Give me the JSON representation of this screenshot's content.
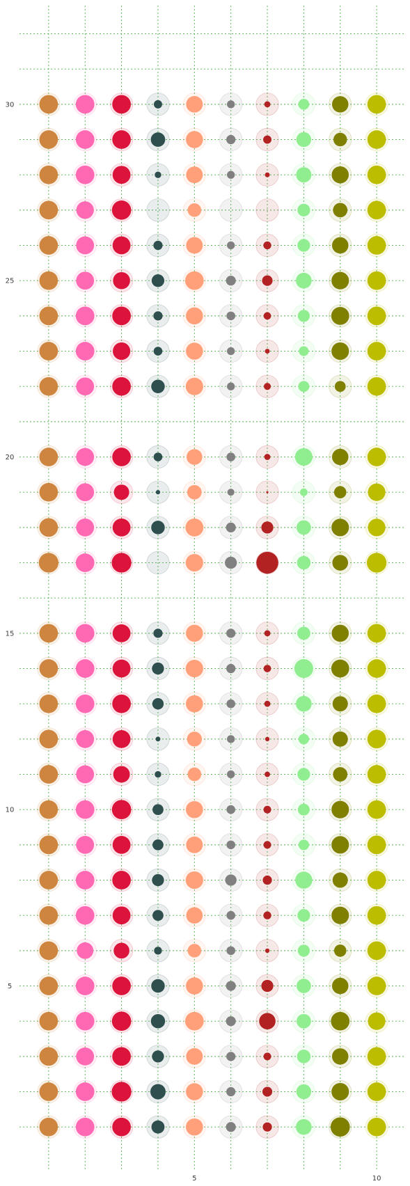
{
  "chart_data": {
    "type": "scatter",
    "title": "",
    "xlabel": "",
    "ylabel": "",
    "xlim": [
      0.2,
      10.8
    ],
    "ylim": [
      -0.2,
      32.8
    ],
    "grid": true,
    "x_ticks": [
      5,
      10
    ],
    "y_ticks": [
      5,
      10,
      15,
      20,
      25,
      30
    ],
    "x_grid": [
      1,
      2,
      3,
      4,
      5,
      6,
      7,
      8,
      9,
      10
    ],
    "y_grid": [
      1,
      2,
      3,
      4,
      5,
      6,
      7,
      8,
      9,
      10,
      11,
      12,
      13,
      14,
      15,
      16,
      17,
      18,
      19,
      20,
      21,
      22,
      23,
      24,
      25,
      26,
      27,
      28,
      29,
      30,
      31,
      32
    ],
    "colors": [
      "#cd853f",
      "#ff69b4",
      "#dc143c",
      "#2f4f4f",
      "#ffa07a",
      "#808080",
      "#b22222",
      "#90ee90",
      "#808000",
      "#bdbd00"
    ],
    "rows": [
      {
        "y": 1,
        "sizes": [
          0.85,
          0.85,
          0.85,
          0.6,
          0.78,
          0.45,
          0.42,
          0.72,
          0.88,
          0.85
        ]
      },
      {
        "y": 2,
        "sizes": [
          0.85,
          0.85,
          0.9,
          0.7,
          0.78,
          0.42,
          0.45,
          0.68,
          0.8,
          0.85
        ]
      },
      {
        "y": 3,
        "sizes": [
          0.85,
          0.82,
          0.85,
          0.55,
          0.76,
          0.42,
          0.35,
          0.62,
          0.75,
          0.85
        ]
      },
      {
        "y": 4,
        "sizes": [
          0.85,
          0.85,
          0.88,
          0.65,
          0.85,
          0.45,
          0.75,
          0.66,
          0.85,
          0.8
        ]
      },
      {
        "y": 5,
        "sizes": [
          0.85,
          0.85,
          0.85,
          0.62,
          0.78,
          0.45,
          0.55,
          0.66,
          0.75,
          0.85
        ]
      },
      {
        "y": 6,
        "sizes": [
          0.85,
          0.76,
          0.72,
          0.36,
          0.62,
          0.4,
          0.2,
          0.55,
          0.56,
          0.85
        ]
      },
      {
        "y": 7,
        "sizes": [
          0.85,
          0.85,
          0.82,
          0.5,
          0.75,
          0.4,
          0.36,
          0.58,
          0.8,
          0.85
        ]
      },
      {
        "y": 8,
        "sizes": [
          0.85,
          0.85,
          0.85,
          0.55,
          0.8,
          0.52,
          0.42,
          0.78,
          0.7,
          0.85
        ]
      },
      {
        "y": 9,
        "sizes": [
          0.85,
          0.82,
          0.82,
          0.5,
          0.76,
          0.4,
          0.35,
          0.48,
          0.8,
          0.85
        ]
      },
      {
        "y": 10,
        "sizes": [
          0.85,
          0.85,
          0.88,
          0.5,
          0.78,
          0.4,
          0.35,
          0.54,
          0.8,
          0.85
        ]
      },
      {
        "y": 11,
        "sizes": [
          0.85,
          0.82,
          0.76,
          0.3,
          0.62,
          0.36,
          0.25,
          0.58,
          0.66,
          0.85
        ]
      },
      {
        "y": 12,
        "sizes": [
          0.85,
          0.82,
          0.82,
          0.22,
          0.68,
          0.36,
          0.2,
          0.48,
          0.7,
          0.85
        ]
      },
      {
        "y": 13,
        "sizes": [
          0.85,
          0.85,
          0.85,
          0.52,
          0.78,
          0.4,
          0.28,
          0.72,
          0.7,
          0.85
        ]
      },
      {
        "y": 14,
        "sizes": [
          0.85,
          0.85,
          0.82,
          0.55,
          0.8,
          0.42,
          0.34,
          0.86,
          0.82,
          0.85
        ]
      },
      {
        "y": 15,
        "sizes": [
          0.85,
          0.85,
          0.82,
          0.42,
          0.78,
          0.42,
          0.28,
          0.6,
          0.78,
          0.85
        ]
      },
      {
        "y": 17,
        "sizes": [
          0.9,
          0.85,
          0.9,
          0.0,
          0.8,
          0.55,
          1.0,
          0.62,
          0.72,
          0.9
        ]
      },
      {
        "y": 18,
        "sizes": [
          0.85,
          0.82,
          0.82,
          0.62,
          0.82,
          0.45,
          0.55,
          0.66,
          0.8,
          0.8
        ]
      },
      {
        "y": 19,
        "sizes": [
          0.85,
          0.82,
          0.7,
          0.2,
          0.66,
          0.32,
          0.1,
          0.35,
          0.56,
          0.8
        ]
      },
      {
        "y": 20,
        "sizes": [
          0.85,
          0.82,
          0.85,
          0.4,
          0.72,
          0.4,
          0.28,
          0.8,
          0.75,
          0.85
        ]
      },
      {
        "y": 22,
        "sizes": [
          0.85,
          0.82,
          0.85,
          0.62,
          0.8,
          0.36,
          0.32,
          0.5,
          0.5,
          0.85
        ]
      },
      {
        "y": 23,
        "sizes": [
          0.85,
          0.85,
          0.8,
          0.4,
          0.78,
          0.36,
          0.22,
          0.45,
          0.8,
          0.85
        ]
      },
      {
        "y": 24,
        "sizes": [
          0.85,
          0.85,
          0.85,
          0.42,
          0.78,
          0.4,
          0.34,
          0.55,
          0.82,
          0.85
        ]
      },
      {
        "y": 25,
        "sizes": [
          0.85,
          0.82,
          0.78,
          0.58,
          0.85,
          0.45,
          0.48,
          0.72,
          0.8,
          0.85
        ]
      },
      {
        "y": 26,
        "sizes": [
          0.85,
          0.82,
          0.82,
          0.42,
          0.76,
          0.36,
          0.36,
          0.58,
          0.75,
          0.85
        ]
      },
      {
        "y": 27,
        "sizes": [
          0.85,
          0.8,
          0.88,
          0.0,
          0.62,
          0.0,
          0.0,
          0.58,
          0.66,
          0.85
        ]
      },
      {
        "y": 28,
        "sizes": [
          0.85,
          0.85,
          0.82,
          0.3,
          0.76,
          0.36,
          0.22,
          0.7,
          0.78,
          0.85
        ]
      },
      {
        "y": 29,
        "sizes": [
          0.85,
          0.85,
          0.85,
          0.66,
          0.78,
          0.42,
          0.38,
          0.68,
          0.62,
          0.85
        ]
      },
      {
        "y": 30,
        "sizes": [
          0.85,
          0.85,
          0.85,
          0.38,
          0.76,
          0.36,
          0.28,
          0.5,
          0.75,
          0.85
        ]
      }
    ]
  }
}
